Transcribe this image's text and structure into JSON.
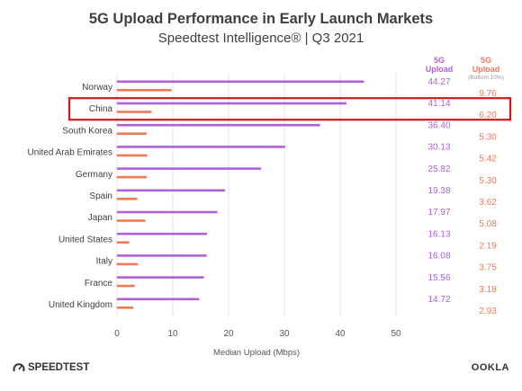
{
  "title": "5G Upload Performance in Early Launch Markets",
  "subtitle": "Speedtest Intelligence® | Q3 2021",
  "columns": {
    "upload": [
      "5G",
      "Upload"
    ],
    "low_upload": [
      "5G",
      "Upload"
    ],
    "low_upload_note": "(Bottom 10%)"
  },
  "footer": {
    "brand_left": "SPEEDTEST",
    "brand_right": "OOKLA"
  },
  "colors": {
    "upload": "#b061d6",
    "low_upload": "#ee7a56",
    "highlight": "#d9141c"
  },
  "highlighted_category": "China",
  "chart_data": {
    "type": "bar",
    "orientation": "horizontal",
    "categories": [
      "Norway",
      "China",
      "South Korea",
      "United Arab Emirates",
      "Germany",
      "Spain",
      "Japan",
      "United States",
      "Italy",
      "France",
      "United Kingdom"
    ],
    "series": [
      {
        "values": [
          44.27,
          41.14,
          36.4,
          30.13,
          25.82,
          19.38,
          17.97,
          16.13,
          16.08,
          15.56,
          14.72
        ],
        "labels": [
          "44.27",
          "41.14",
          "36.40",
          "30.13",
          "25.82",
          "19.38",
          "17.97",
          "16.13",
          "16.08",
          "15.56",
          "14.72"
        ]
      },
      {
        "values": [
          9.76,
          6.2,
          5.3,
          5.42,
          5.3,
          3.62,
          5.08,
          2.19,
          3.75,
          3.18,
          2.93
        ],
        "labels": [
          "9.76",
          "6.20",
          "5.30",
          "5.42",
          "5.30",
          "3.62",
          "5.08",
          "2.19",
          "3.75",
          "3.18",
          "2.93"
        ]
      }
    ],
    "xlabel": "Median Upload (Mbps)",
    "xlim": [
      0,
      50
    ],
    "xticks": [
      "0",
      "10",
      "20",
      "30",
      "40",
      "50"
    ],
    "grid": true
  }
}
